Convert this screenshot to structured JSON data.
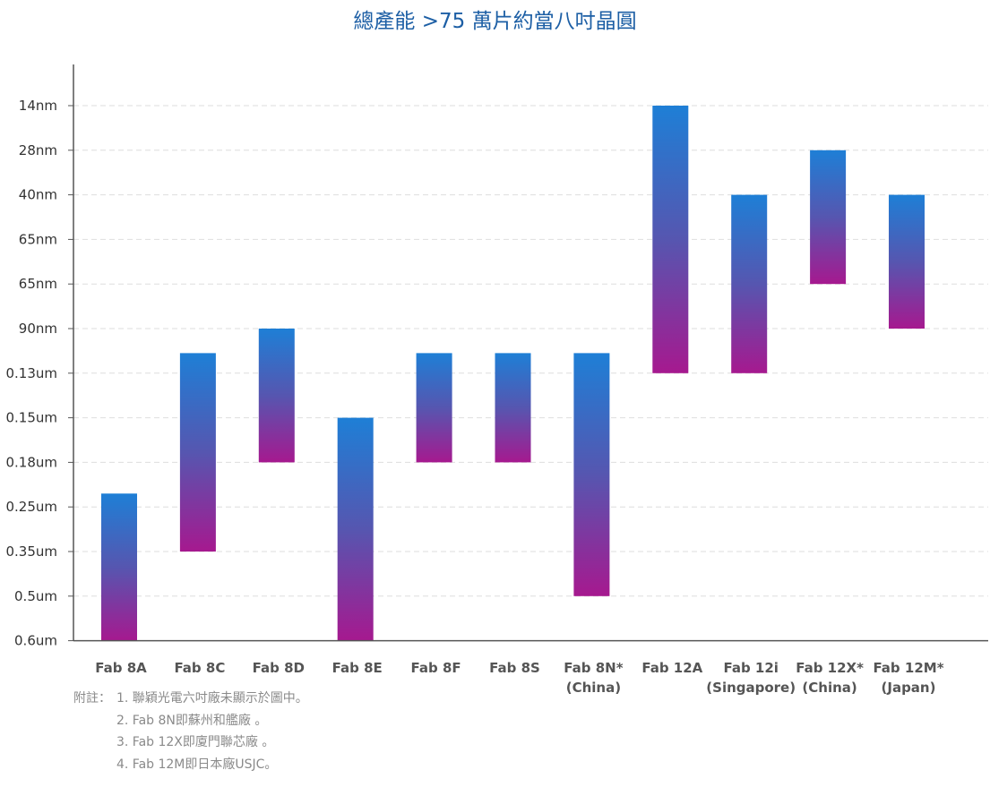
{
  "chart_data": {
    "type": "bar",
    "subtype": "floating-range",
    "title": "總產能 >75 萬片約當八吋晶圓",
    "xlabel": "",
    "ylabel": "",
    "y_ticks": [
      "14nm",
      "28nm",
      "40nm",
      "65nm",
      "65nm",
      "90nm",
      "0.13um",
      "0.15um",
      "0.18um",
      "0.25um",
      "0.35um",
      "0.5um",
      "0.6um"
    ],
    "grid": true,
    "legend": "none",
    "colors": {
      "bar_top": "#1e7fd6",
      "bar_mid": "#5656b0",
      "bar_bottom": "#a6198f",
      "title": "#1d5fa5"
    },
    "categories": [
      [
        "Fab 8A"
      ],
      [
        "Fab 8C"
      ],
      [
        "Fab 8D"
      ],
      [
        "Fab 8E"
      ],
      [
        "Fab 8F"
      ],
      [
        "Fab 8S"
      ],
      [
        "Fab 8N*",
        "(China)"
      ],
      [
        "Fab 12A"
      ],
      [
        "Fab 12i",
        "(Singapore)"
      ],
      [
        "Fab 12X*",
        "(China)"
      ],
      [
        "Fab 12M*",
        "(Japan)"
      ]
    ],
    "ranges": [
      {
        "from": "0.6um",
        "to": "0.25um",
        "from_index": 12,
        "to_index": 8.7
      },
      {
        "from": "0.35um",
        "to": "0.13um",
        "from_index": 10,
        "to_index": 5.55
      },
      {
        "from": "0.18um",
        "to": "90nm",
        "from_index": 8,
        "to_index": 5
      },
      {
        "from": "0.6um",
        "to": "0.15um",
        "from_index": 12,
        "to_index": 7
      },
      {
        "from": "0.18um",
        "to": "0.13um",
        "from_index": 8,
        "to_index": 5.55
      },
      {
        "from": "0.18um",
        "to": "0.13um",
        "from_index": 8,
        "to_index": 5.55
      },
      {
        "from": "0.5um",
        "to": "0.13um",
        "from_index": 11,
        "to_index": 5.55
      },
      {
        "from": "0.13um",
        "to": "14nm",
        "from_index": 6,
        "to_index": 0
      },
      {
        "from": "0.13um",
        "to": "40nm",
        "from_index": 6,
        "to_index": 2
      },
      {
        "from": "65nm",
        "to": "28nm",
        "from_index": 4,
        "to_index": 1
      },
      {
        "from": "90nm",
        "to": "40nm",
        "from_index": 5,
        "to_index": 2
      }
    ]
  },
  "notes": [
    {
      "prefix": "附註：",
      "text": "1. 聯穎光電六吋廠未顯示於圖中。"
    },
    {
      "prefix": "",
      "text": "2. Fab 8N即蘇州和艦廠 。"
    },
    {
      "prefix": "",
      "text": "3. Fab 12X即廈門聯芯廠 。"
    },
    {
      "prefix": "",
      "text": "4. Fab 12M即日本廠USJC。"
    }
  ]
}
